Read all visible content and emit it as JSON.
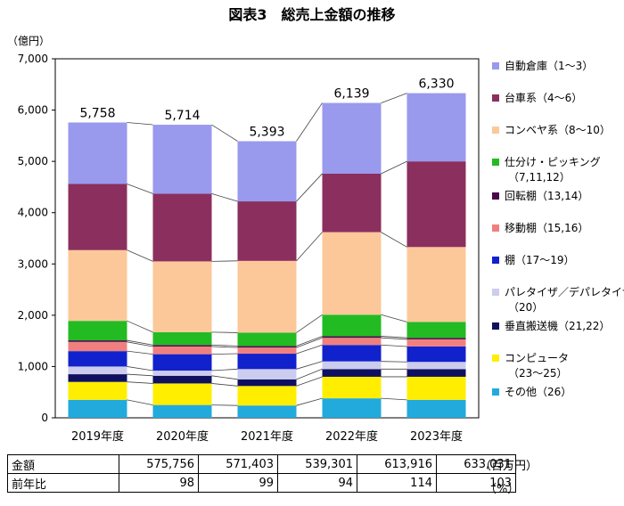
{
  "chart_data": {
    "type": "bar",
    "stacked": true,
    "title": "図表3　総売上金額の推移",
    "ylabel": "（億円）",
    "ylim": [
      0,
      7000
    ],
    "yticks": [
      "0",
      "1,000",
      "2,000",
      "3,000",
      "4,000",
      "5,000",
      "6,000",
      "7,000"
    ],
    "grid": false,
    "legend_position": "right",
    "categories": [
      "2019年度",
      "2020年度",
      "2021年度",
      "2022年度",
      "2023年度"
    ],
    "totals_labels": [
      "5,758",
      "5,714",
      "5,393",
      "6,139",
      "6,330"
    ],
    "series": [
      {
        "name": "その他（26）",
        "color": "#22aadd",
        "values": [
          350,
          250,
          240,
          380,
          350
        ]
      },
      {
        "name": "コンピュータ（23～25）",
        "color": "#ffee00",
        "values": [
          350,
          420,
          380,
          420,
          450
        ]
      },
      {
        "name": "垂直搬送機（21,22）",
        "color": "#101060",
        "values": [
          150,
          150,
          130,
          150,
          150
        ]
      },
      {
        "name": "パレタイザ／デパレタイザ（20）",
        "color": "#ccccee",
        "values": [
          150,
          100,
          200,
          150,
          140
        ]
      },
      {
        "name": "棚（17～19）",
        "color": "#1122cc",
        "values": [
          300,
          320,
          300,
          320,
          300
        ]
      },
      {
        "name": "移動棚（15,16）",
        "color": "#f08080",
        "values": [
          180,
          150,
          120,
          140,
          140
        ]
      },
      {
        "name": "回転棚（13,14）",
        "color": "#4a0a4a",
        "values": [
          30,
          30,
          30,
          30,
          30
        ]
      },
      {
        "name": "仕分け・ピッキング（7,11,12）",
        "color": "#22bb22",
        "values": [
          380,
          250,
          260,
          420,
          310
        ]
      },
      {
        "name": "コンベヤ系（8～10）",
        "color": "#fcc89a",
        "values": [
          1380,
          1380,
          1400,
          1610,
          1460
        ]
      },
      {
        "name": "台車系（4～6）",
        "color": "#8b2f5e",
        "values": [
          1290,
          1320,
          1160,
          1140,
          1670
        ]
      },
      {
        "name": "自動倉庫（1～3）",
        "color": "#9999ee",
        "values": [
          1198,
          1344,
          1173,
          1379,
          1330
        ]
      }
    ],
    "legend_order": [
      10,
      9,
      8,
      7,
      6,
      5,
      4,
      3,
      2,
      1,
      0
    ]
  },
  "table": {
    "rows": [
      {
        "label": "金額",
        "values": [
          "575,756",
          "571,403",
          "539,301",
          "613,916",
          "633,031"
        ],
        "unit": "（百万円）"
      },
      {
        "label": "前年比",
        "values": [
          "98",
          "99",
          "94",
          "114",
          "103"
        ],
        "unit": "（%）"
      }
    ]
  }
}
